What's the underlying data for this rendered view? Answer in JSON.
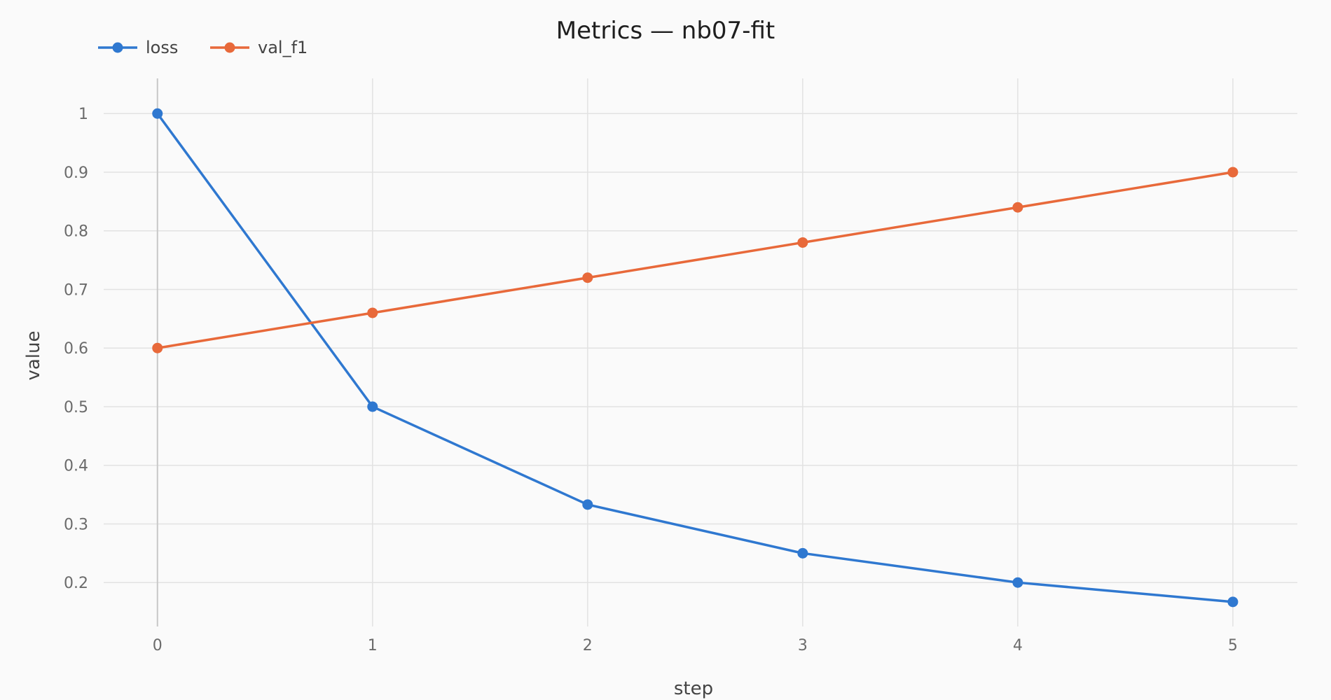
{
  "chart_data": {
    "type": "line",
    "title": "Metrics — nb07-fit",
    "xlabel": "step",
    "ylabel": "value",
    "x": [
      0,
      1,
      2,
      3,
      4,
      5
    ],
    "xlim": [
      -0.25,
      5.3
    ],
    "ylim": [
      0.125,
      1.06
    ],
    "x_ticks": [
      0,
      1,
      2,
      3,
      4,
      5
    ],
    "y_ticks": [
      0.2,
      0.3,
      0.4,
      0.5,
      0.6,
      0.7,
      0.8,
      0.9,
      1
    ],
    "y_tick_labels": [
      "0.2",
      "0.3",
      "0.4",
      "0.5",
      "0.6",
      "0.7",
      "0.8",
      "0.9",
      "1"
    ],
    "grid": true,
    "legend": "top-left",
    "series": [
      {
        "name": "loss",
        "color": "#2f78d0",
        "values": [
          1.0,
          0.5,
          0.333,
          0.25,
          0.2,
          0.167
        ]
      },
      {
        "name": "val_f1",
        "color": "#e8693a",
        "values": [
          0.6,
          0.66,
          0.72,
          0.78,
          0.84,
          0.9
        ]
      }
    ]
  }
}
